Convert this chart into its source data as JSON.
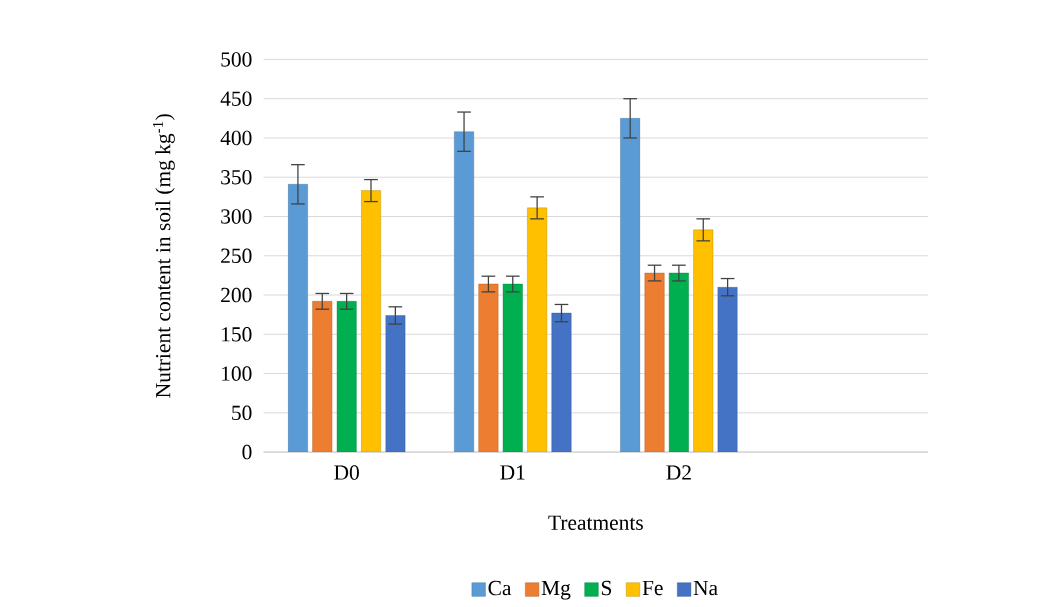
{
  "chart_data": {
    "type": "bar",
    "xlabel": "Treatments",
    "ylabel": "Nutrient content in soil (mg kg$^{-1}$)",
    "categories": [
      "D0",
      "D1",
      "D2",
      null
    ],
    "series": [
      {
        "name": "Ca",
        "color": "#5b9bd5",
        "values": [
          341,
          408,
          425,
          null
        ],
        "errors": [
          25,
          25,
          25,
          null
        ]
      },
      {
        "name": "Mg",
        "color": "#ed7d31",
        "values": [
          192,
          214,
          228,
          null
        ],
        "errors": [
          10,
          10,
          10,
          null
        ]
      },
      {
        "name": "S",
        "color": "#00b050",
        "values": [
          192,
          214,
          228,
          null
        ],
        "errors": [
          10,
          10,
          10,
          null
        ]
      },
      {
        "name": "Fe",
        "color": "#ffc000",
        "values": [
          333,
          311,
          283,
          null
        ],
        "errors": [
          14,
          14,
          14,
          null
        ]
      },
      {
        "name": "Na",
        "color": "#4472c4",
        "values": [
          174,
          177,
          210,
          null
        ],
        "errors": [
          11,
          11,
          11,
          null
        ]
      }
    ],
    "ylim": [
      0,
      500
    ],
    "yticks": [
      0,
      50,
      100,
      150,
      200,
      250,
      300,
      350,
      400,
      450,
      500
    ],
    "grid": "y",
    "legend": "bottom"
  }
}
